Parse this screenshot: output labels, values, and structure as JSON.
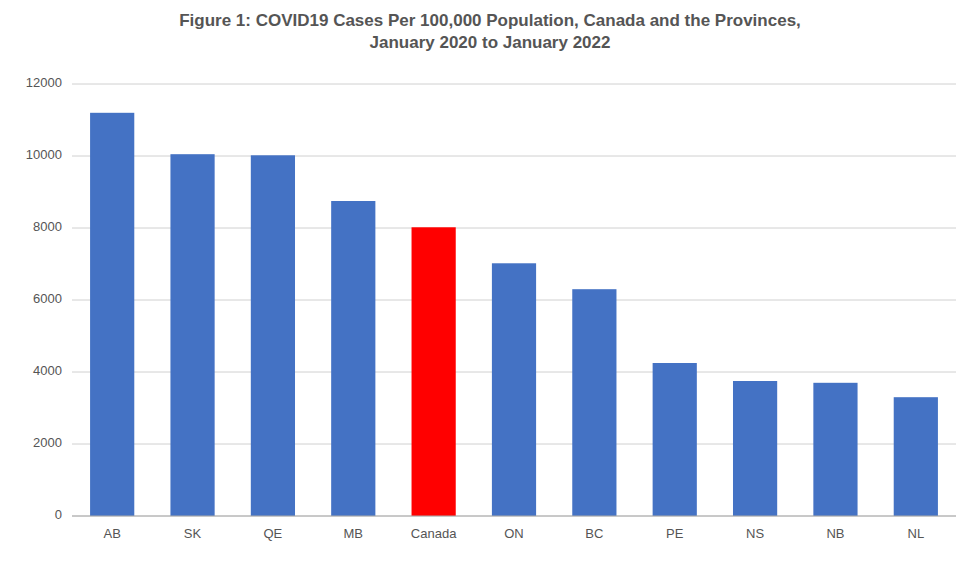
{
  "chart_data": {
    "type": "bar",
    "title": "Figure 1: COVID19 Cases Per 100,000 Population, Canada and the Provinces,\nJanuary 2020 to January 2022",
    "categories": [
      "AB",
      "SK",
      "QE",
      "MB",
      "Canada",
      "ON",
      "BC",
      "PE",
      "NS",
      "NB",
      "NL"
    ],
    "values": [
      11200,
      10050,
      10020,
      8750,
      8020,
      7020,
      6300,
      4250,
      3750,
      3700,
      3300
    ],
    "colors": [
      "#4472c4",
      "#4472c4",
      "#4472c4",
      "#4472c4",
      "#ff0000",
      "#4472c4",
      "#4472c4",
      "#4472c4",
      "#4472c4",
      "#4472c4",
      "#4472c4"
    ],
    "ylim": [
      0,
      12000
    ],
    "yticks": [
      0,
      2000,
      4000,
      6000,
      8000,
      10000,
      12000
    ],
    "grid": true
  }
}
